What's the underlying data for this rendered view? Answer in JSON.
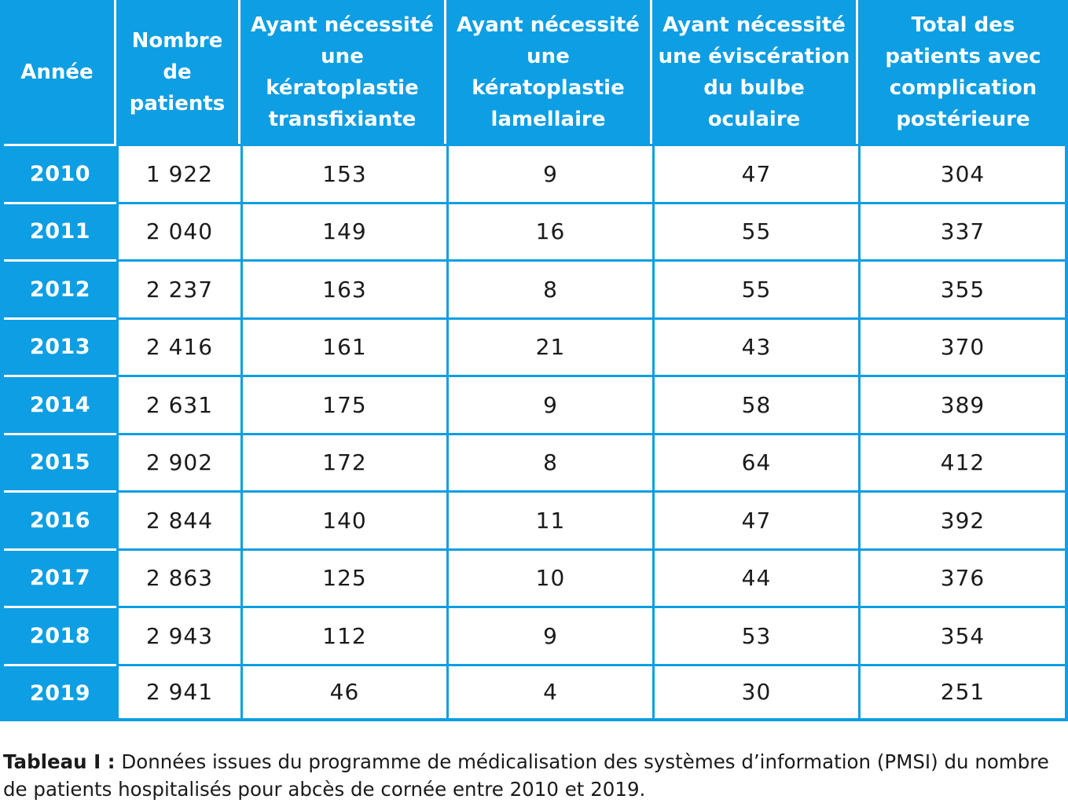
{
  "headers": [
    "Année",
    "Nombre de patients",
    "Ayant nécessité une kératoplastie transfixiante",
    "Ayant nécessité une kératoplastie lamellaire",
    "Ayant nécessité une éviscération du bulbe oculaire",
    "Total des patients avec complication postérieure"
  ],
  "rows": [
    [
      "2010",
      "1 922",
      "153",
      "9",
      "47",
      "304"
    ],
    [
      "2011",
      "2 040",
      "149",
      "16",
      "55",
      "337"
    ],
    [
      "2012",
      "2 237",
      "163",
      "8",
      "55",
      "355"
    ],
    [
      "2013",
      "2 416",
      "161",
      "21",
      "43",
      "370"
    ],
    [
      "2014",
      "2 631",
      "175",
      "9",
      "58",
      "389"
    ],
    [
      "2015",
      "2 902",
      "172",
      "8",
      "64",
      "412"
    ],
    [
      "2016",
      "2 844",
      "140",
      "11",
      "47",
      "392"
    ],
    [
      "2017",
      "2 863",
      "125",
      "10",
      "44",
      "376"
    ],
    [
      "2018",
      "2 943",
      "112",
      "9",
      "53",
      "354"
    ],
    [
      "2019",
      "2 941",
      "46",
      "4",
      "30",
      "251"
    ]
  ],
  "caption": {
    "label": "Tableau I :",
    "text": " Données issues du programme de médicalisation des systèmes d’information (PMSI) du nombre de patients hospitalisés pour abcès de cornée entre 2010 et 2019."
  },
  "colors": {
    "accent": "#0d9ee3",
    "cell_bg": "#ffffff",
    "header_text": "#ffffff"
  }
}
